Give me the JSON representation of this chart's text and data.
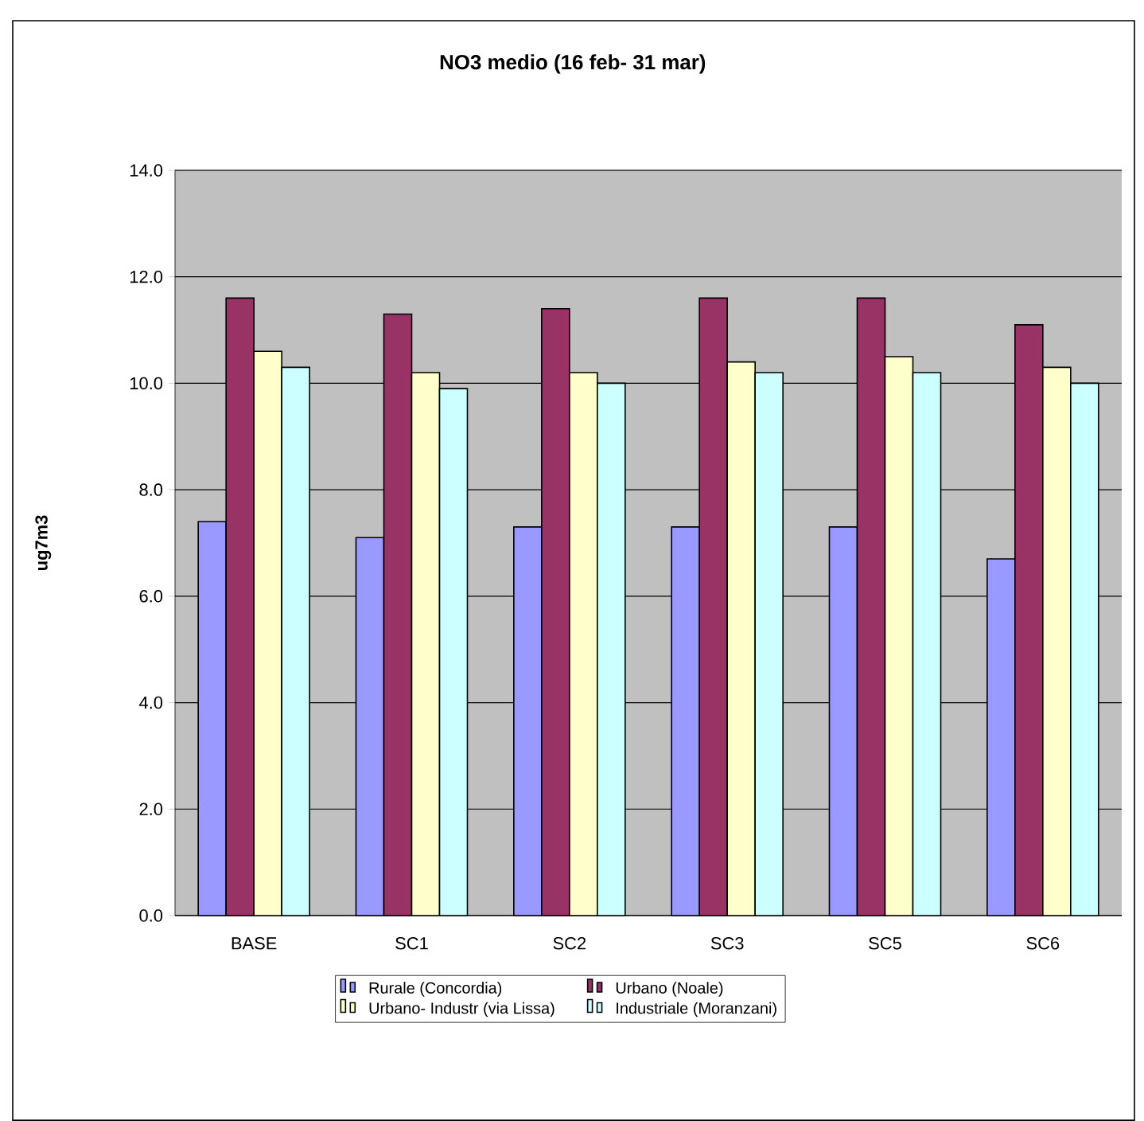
{
  "chart_data": {
    "type": "bar",
    "title": "NO3 medio (16 feb- 31 mar)",
    "ylabel": "ug7m3",
    "categories": [
      "BASE",
      "SC1",
      "SC2",
      "SC3",
      "SC5",
      "SC6"
    ],
    "series": [
      {
        "name": "Rurale (Concordia)",
        "color": "#9999ff",
        "values": [
          7.4,
          7.1,
          7.3,
          7.3,
          7.3,
          6.7
        ]
      },
      {
        "name": "Urbano (Noale)",
        "color": "#993366",
        "values": [
          11.6,
          11.3,
          11.4,
          11.6,
          11.6,
          11.1
        ]
      },
      {
        "name": "Urbano- Industr (via Lissa)",
        "color": "#ffffcc",
        "values": [
          10.6,
          10.2,
          10.2,
          10.4,
          10.5,
          10.3
        ]
      },
      {
        "name": "Industriale (Moranzani)",
        "color": "#ccffff",
        "values": [
          10.3,
          9.9,
          10.0,
          10.2,
          10.2,
          10.0
        ]
      }
    ],
    "ylim": [
      0,
      14
    ],
    "yticks": [
      {
        "value": 0,
        "label": "0.0"
      },
      {
        "value": 2,
        "label": "2.0"
      },
      {
        "value": 4,
        "label": "4.0"
      },
      {
        "value": 6,
        "label": "6.0"
      },
      {
        "value": 8,
        "label": "8.0"
      },
      {
        "value": 10,
        "label": "10.0"
      },
      {
        "value": 12,
        "label": "12.0"
      },
      {
        "value": 14,
        "label": "14.0"
      }
    ],
    "grid": "y",
    "legend": "bottom"
  }
}
